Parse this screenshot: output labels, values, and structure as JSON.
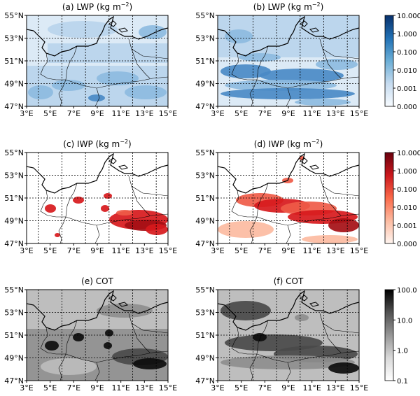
{
  "panels": [
    {
      "id": "a",
      "title": "(a) LWP (kg m",
      "title_sup": "−2",
      "title_end": ")",
      "variable": "LWP",
      "colormap": "blues",
      "colorbar_row": 0
    },
    {
      "id": "b",
      "title": "(b) LWP (kg m",
      "title_sup": "−2",
      "title_end": ")",
      "variable": "LWP",
      "colormap": "blues",
      "colorbar_row": 0
    },
    {
      "id": "c",
      "title": "(c) IWP (kg m",
      "title_sup": "−2",
      "title_end": ")",
      "variable": "IWP",
      "colormap": "reds",
      "colorbar_row": 1
    },
    {
      "id": "d",
      "title": "(d) IWP (kg m",
      "title_sup": "−2",
      "title_end": ")",
      "variable": "IWP",
      "colormap": "reds",
      "colorbar_row": 1
    },
    {
      "id": "e",
      "title": "(e) COT",
      "title_sup": "",
      "title_end": "",
      "variable": "COT",
      "colormap": "greys",
      "colorbar_row": 2
    },
    {
      "id": "f",
      "title": "(f) COT",
      "title_sup": "",
      "title_end": "",
      "variable": "COT",
      "colormap": "greys",
      "colorbar_row": 2
    }
  ],
  "lat_ticks": [
    "55°N",
    "53°N",
    "51°N",
    "49°N",
    "47°N"
  ],
  "lon_ticks": [
    "3°E",
    "5°E",
    "7°E",
    "9°E",
    "11°E",
    "13°E",
    "15°E"
  ],
  "colorbars": [
    {
      "variable": "LWP",
      "colormap": "blues",
      "ticks": [
        "10.000",
        "1.000",
        "0.100",
        "0.010",
        "0.001",
        "0.000"
      ],
      "colors": [
        "#08306b",
        "#2171b5",
        "#6baed6",
        "#c6dbef",
        "#f7fbff"
      ]
    },
    {
      "variable": "IWP",
      "colormap": "reds",
      "ticks": [
        "10.000",
        "1.000",
        "0.100",
        "0.010",
        "0.001",
        "0.000"
      ],
      "colors": [
        "#67000d",
        "#cb181d",
        "#fb6a4a",
        "#fcbba1",
        "#fff5f0"
      ]
    },
    {
      "variable": "COT",
      "colormap": "greys",
      "ticks": [
        "100.0",
        "10.0",
        "1.0",
        "0.1"
      ],
      "colors": [
        "#000000",
        "#525252",
        "#969696",
        "#d9d9d9",
        "#ffffff"
      ]
    }
  ]
}
